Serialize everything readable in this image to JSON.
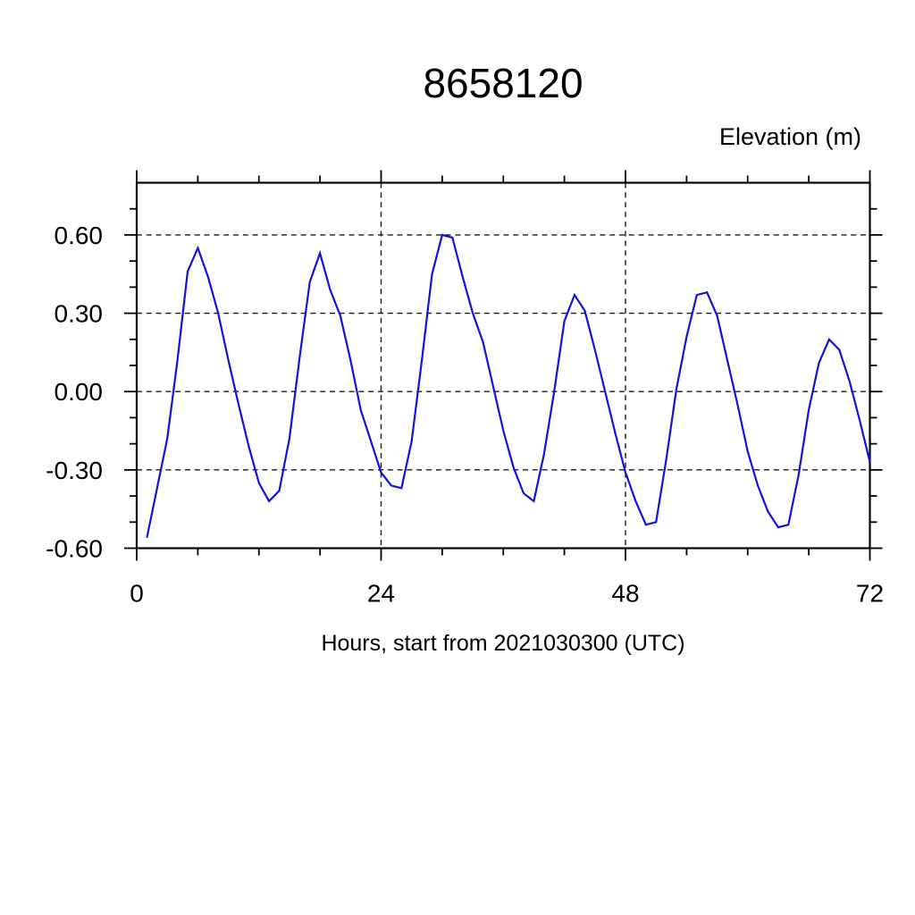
{
  "chart_data": {
    "type": "line",
    "title": "8658120",
    "ylabel": "Elevation (m)",
    "xlabel": "Hours, start from 2021030300 (UTC)",
    "x_range": [
      0,
      72
    ],
    "y_range": [
      -0.6,
      0.8
    ],
    "x_major_ticks": [
      0,
      24,
      48,
      72
    ],
    "x_tick_labels": [
      "0",
      "24",
      "48",
      "72"
    ],
    "x_minor_tick_interval": 6,
    "y_major_ticks": [
      -0.6,
      -0.3,
      0.0,
      0.3,
      0.6
    ],
    "y_tick_labels": [
      "-0.60",
      "-0.30",
      "0.00",
      "0.30",
      "0.60"
    ],
    "y_minor_tick_interval": 0.1,
    "grid": {
      "style": "dashed",
      "h_values": [
        -0.3,
        0.0,
        0.3,
        0.6
      ],
      "v_values": [
        24,
        48
      ]
    },
    "line_color": "#1212dd",
    "axis_color": "#000000",
    "background_color": "#ffffff",
    "series": [
      {
        "name": "elevation",
        "x": [
          1,
          2,
          3,
          4,
          5,
          6,
          7,
          8,
          9,
          10,
          11,
          12,
          13,
          14,
          15,
          16,
          17,
          18,
          19,
          20,
          21,
          22,
          23,
          24,
          25,
          26,
          27,
          28,
          29,
          30,
          31,
          32,
          33,
          34,
          35,
          36,
          37,
          38,
          39,
          40,
          41,
          42,
          43,
          44,
          45,
          46,
          47,
          48,
          49,
          50,
          51,
          52,
          53,
          54,
          55,
          56,
          57,
          58,
          59,
          60,
          61,
          62,
          63,
          64,
          65,
          66,
          67,
          68,
          69,
          70,
          71,
          72
        ],
        "values": [
          -0.56,
          -0.37,
          -0.18,
          0.12,
          0.46,
          0.55,
          0.44,
          0.3,
          0.12,
          -0.05,
          -0.21,
          -0.35,
          -0.42,
          -0.38,
          -0.18,
          0.13,
          0.42,
          0.53,
          0.39,
          0.29,
          0.12,
          -0.07,
          -0.19,
          -0.31,
          -0.36,
          -0.37,
          -0.19,
          0.12,
          0.45,
          0.6,
          0.59,
          0.44,
          0.3,
          0.19,
          0.02,
          -0.15,
          -0.29,
          -0.39,
          -0.42,
          -0.24,
          0.0,
          0.27,
          0.37,
          0.31,
          0.16,
          0.0,
          -0.16,
          -0.31,
          -0.42,
          -0.51,
          -0.5,
          -0.26,
          0.01,
          0.21,
          0.37,
          0.38,
          0.29,
          0.12,
          -0.05,
          -0.23,
          -0.36,
          -0.46,
          -0.52,
          -0.51,
          -0.32,
          -0.07,
          0.11,
          0.2,
          0.16,
          0.04,
          -0.11,
          -0.27
        ]
      }
    ]
  }
}
